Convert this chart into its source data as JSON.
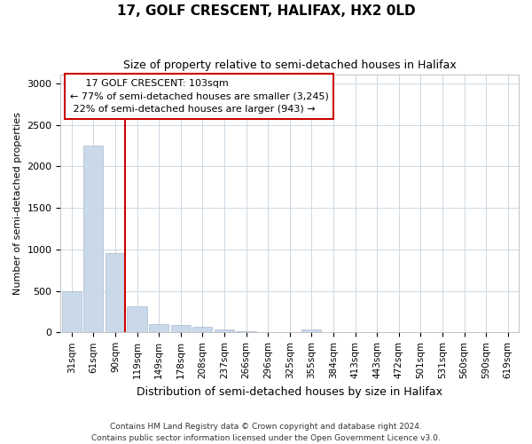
{
  "title": "17, GOLF CRESCENT, HALIFAX, HX2 0LD",
  "subtitle": "Size of property relative to semi-detached houses in Halifax",
  "xlabel": "Distribution of semi-detached houses by size in Halifax",
  "ylabel": "Number of semi-detached properties",
  "property_label": "17 GOLF CRESCENT: 103sqm",
  "pct_smaller": 77,
  "pct_larger": 22,
  "n_smaller": 3245,
  "n_larger": 943,
  "categories": [
    "31sqm",
    "61sqm",
    "90sqm",
    "119sqm",
    "149sqm",
    "178sqm",
    "208sqm",
    "237sqm",
    "266sqm",
    "296sqm",
    "325sqm",
    "355sqm",
    "384sqm",
    "413sqm",
    "443sqm",
    "472sqm",
    "501sqm",
    "531sqm",
    "560sqm",
    "590sqm",
    "619sqm"
  ],
  "values": [
    500,
    2250,
    950,
    315,
    100,
    90,
    65,
    40,
    12,
    0,
    0,
    40,
    0,
    0,
    0,
    0,
    0,
    0,
    0,
    0,
    0
  ],
  "bar_color": "#c9d9ea",
  "bar_edge_color": "#aabbcc",
  "vline_color": "#cc0000",
  "vline_x": 2.45,
  "annotation_box_color": "#cc0000",
  "ylim": [
    0,
    3100
  ],
  "yticks": [
    0,
    500,
    1000,
    1500,
    2000,
    2500,
    3000
  ],
  "background_color": "#ffffff",
  "grid_color": "#cdd8e3",
  "footer_line1": "Contains HM Land Registry data © Crown copyright and database right 2024.",
  "footer_line2": "Contains public sector information licensed under the Open Government Licence v3.0."
}
